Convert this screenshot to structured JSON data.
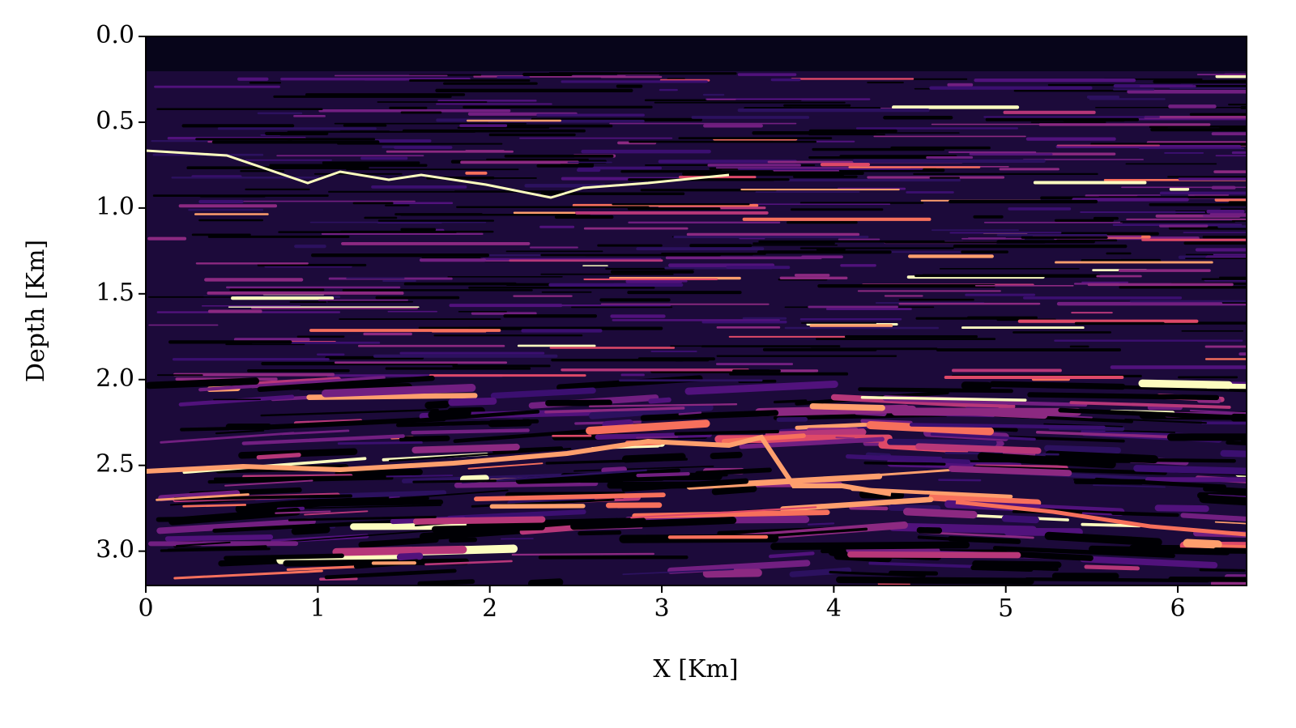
{
  "chart_data": {
    "type": "heatmap",
    "x_label": "X [Km]",
    "y_label": "Depth [Km]",
    "xlim": [
      0,
      6.4
    ],
    "ylim": [
      3.2,
      0
    ],
    "xticks": [
      0,
      1,
      2,
      3,
      4,
      5,
      6
    ],
    "yticks": [
      {
        "value": 0,
        "label": "0.0"
      },
      0.5,
      {
        "value": 1,
        "label": "1.0"
      },
      1.5,
      {
        "value": 2,
        "label": "2.0"
      },
      2.5,
      {
        "value": 3,
        "label": "3.0"
      }
    ]
  }
}
